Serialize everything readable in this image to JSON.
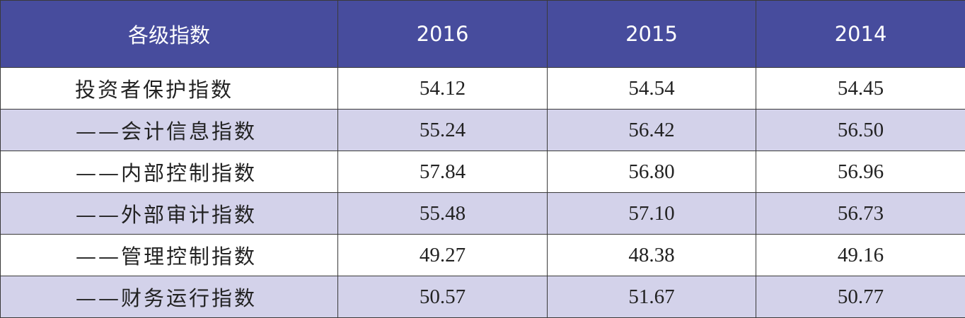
{
  "table": {
    "headers": [
      "各级指数",
      "2016",
      "2015",
      "2014"
    ],
    "rows": [
      {
        "label": "投资者保护指数",
        "values": [
          "54.12",
          "54.54",
          "54.45"
        ]
      },
      {
        "label": "——会计信息指数",
        "values": [
          "55.24",
          "56.42",
          "56.50"
        ]
      },
      {
        "label": "——内部控制指数",
        "values": [
          "57.84",
          "56.80",
          "56.96"
        ]
      },
      {
        "label": "——外部审计指数",
        "values": [
          "55.48",
          "57.10",
          "56.73"
        ]
      },
      {
        "label": "——管理控制指数",
        "values": [
          "49.27",
          "48.38",
          "49.16"
        ]
      },
      {
        "label": "——财务运行指数",
        "values": [
          "50.57",
          "51.67",
          "50.77"
        ]
      }
    ]
  },
  "colors": {
    "header_bg": "#474c9d",
    "header_text": "#ffffff",
    "band_row_bg": "#d3d2ea",
    "plain_row_bg": "#ffffff",
    "border": "#3a3a3a"
  }
}
